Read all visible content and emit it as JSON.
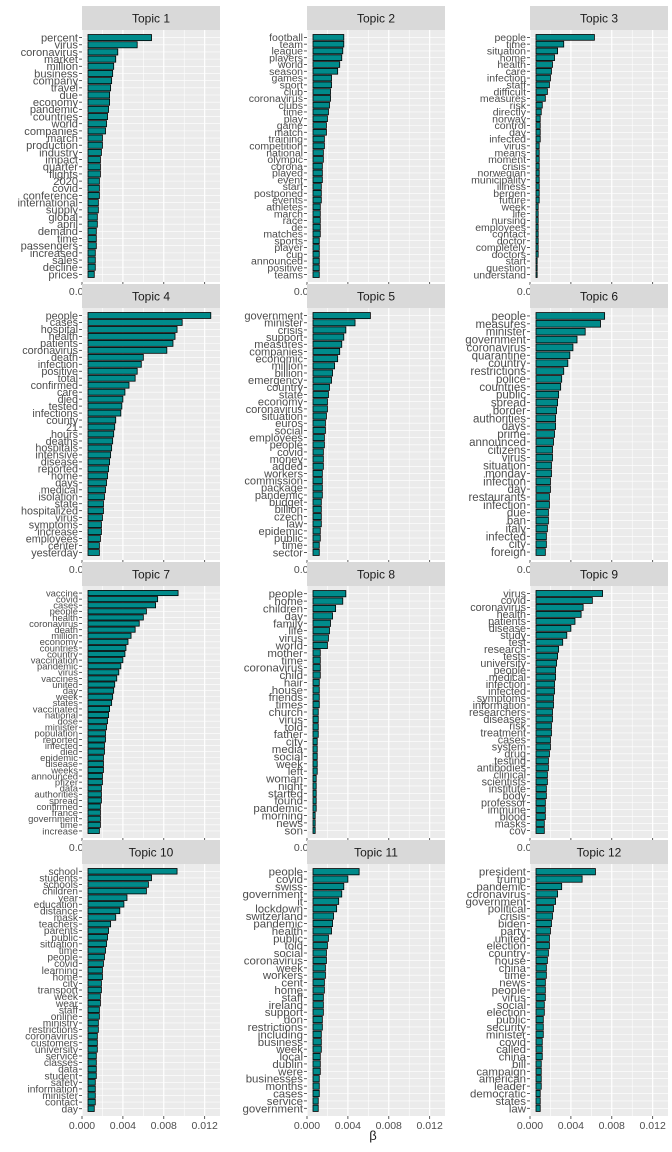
{
  "chart_data": {
    "type": "bar",
    "orientation": "horizontal",
    "xlabel": "β",
    "ylabel": "",
    "xlim": [
      0,
      0.0135
    ],
    "x_ticks": [
      0.0,
      0.004,
      0.008,
      0.012
    ],
    "x_tick_labels": [
      "0.000",
      "0.004",
      "0.008",
      "0.012"
    ],
    "bar_color": "#008B8B",
    "bar_outline": "#000000",
    "panel_background": "#EBEBEB",
    "strip_background": "#D9D9D9",
    "grid": true,
    "legend": "none",
    "panels": [
      {
        "title": "Topic 1",
        "terms": [
          "percent",
          "virus",
          "coronavirus",
          "market",
          "million",
          "business",
          "company",
          "travel",
          "due",
          "economy",
          "pandemic",
          "countries",
          "world",
          "companies",
          "march",
          "production",
          "industry",
          "impact",
          "quarter",
          "flights",
          "2020",
          "covid",
          "conference",
          "international",
          "supply",
          "global",
          "april",
          "demand",
          "time",
          "passengers",
          "increased",
          "sales",
          "decline",
          "prices"
        ],
        "values": [
          0.0068,
          0.0054,
          0.0035,
          0.0033,
          0.0031,
          0.003,
          0.0029,
          0.0028,
          0.0027,
          0.0027,
          0.0026,
          0.0025,
          0.0024,
          0.0023,
          0.002,
          0.002,
          0.0019,
          0.0018,
          0.0018,
          0.0018,
          0.0017,
          0.0017,
          0.0017,
          0.0016,
          0.0016,
          0.0015,
          0.0015,
          0.0014,
          0.0014,
          0.0014,
          0.0013,
          0.0013,
          0.0013,
          0.0012
        ]
      },
      {
        "title": "Topic 2",
        "terms": [
          "football",
          "team",
          "league",
          "players",
          "world",
          "season",
          "games",
          "sport",
          "club",
          "coronavirus",
          "clubs",
          "time",
          "play",
          "game",
          "match",
          "training",
          "competition",
          "national",
          "olympic",
          "corona",
          "played",
          "event",
          "start",
          "postponed",
          "events",
          "athletes",
          "march",
          "race",
          "de",
          "matches",
          "sports",
          "player",
          "cup",
          "announced",
          "positive",
          "teams"
        ],
        "values": [
          0.0036,
          0.0036,
          0.0035,
          0.0034,
          0.0032,
          0.003,
          0.0024,
          0.0024,
          0.0023,
          0.0023,
          0.0022,
          0.0021,
          0.002,
          0.0019,
          0.0019,
          0.0017,
          0.0017,
          0.0016,
          0.0016,
          0.0015,
          0.0015,
          0.0015,
          0.0014,
          0.0014,
          0.0014,
          0.0013,
          0.0013,
          0.0013,
          0.0013,
          0.0013,
          0.0012,
          0.0012,
          0.0012,
          0.0012,
          0.0012,
          0.0012
        ]
      },
      {
        "title": "Topic 3",
        "terms": [
          "people",
          "time",
          "situation",
          "home",
          "health",
          "care",
          "infection",
          "staff",
          "difficult",
          "measures",
          "risk",
          "directly",
          "norway",
          "control",
          "day",
          "infected",
          "virus",
          "means",
          "moment",
          "crisis",
          "norwegian",
          "municipality",
          "illness",
          "bergen",
          "future",
          "week",
          "life",
          "nursing",
          "employees",
          "contact",
          "doctor",
          "completely",
          "doctors",
          "start",
          "question",
          "understand"
        ],
        "values": [
          0.0063,
          0.0033,
          0.0027,
          0.0024,
          0.0022,
          0.0021,
          0.002,
          0.0019,
          0.0017,
          0.0015,
          0.0012,
          0.0011,
          0.001,
          0.001,
          0.001,
          0.001,
          0.0009,
          0.0009,
          0.0009,
          0.0009,
          0.0009,
          0.0009,
          0.0009,
          0.0009,
          0.0009,
          0.0008,
          0.0008,
          0.0008,
          0.0008,
          0.0008,
          0.0008,
          0.0008,
          0.0008,
          0.0007,
          0.0007,
          0.0007
        ]
      },
      {
        "title": "Topic 4",
        "terms": [
          "people",
          "cases",
          "hospital",
          "health",
          "patients",
          "coronavirus",
          "death",
          "infection",
          "positive",
          "total",
          "confirmed",
          "care",
          "died",
          "tested",
          "infections",
          "county",
          "21",
          "hours",
          "deaths",
          "hospitals",
          "intensive",
          "disease",
          "reported",
          "home",
          "days",
          "medical",
          "isolation",
          "state",
          "hospitalized",
          "virus",
          "symptoms",
          "increase",
          "employees",
          "center",
          "yesterday"
        ],
        "values": [
          0.0126,
          0.0098,
          0.0093,
          0.0091,
          0.0089,
          0.0083,
          0.006,
          0.0058,
          0.0054,
          0.0052,
          0.0046,
          0.0042,
          0.004,
          0.0039,
          0.0038,
          0.0033,
          0.0032,
          0.0031,
          0.003,
          0.0029,
          0.0028,
          0.0027,
          0.0026,
          0.0025,
          0.0024,
          0.0023,
          0.0022,
          0.0021,
          0.0021,
          0.002,
          0.0019,
          0.0019,
          0.0018,
          0.0017,
          0.0017
        ]
      },
      {
        "title": "Topic 5",
        "terms": [
          "government",
          "minister",
          "crisis",
          "support",
          "measures",
          "companies",
          "economic",
          "million",
          "billion",
          "emergency",
          "country",
          "state",
          "economy",
          "coronavirus",
          "situation",
          "euros",
          "social",
          "employees",
          "people",
          "covid",
          "money",
          "added",
          "workers",
          "commission",
          "package",
          "pandemic",
          "budget",
          "billion",
          "czech",
          "law",
          "epidemic",
          "public",
          "time",
          "sector"
        ],
        "values": [
          0.0062,
          0.0047,
          0.0038,
          0.0036,
          0.0034,
          0.0032,
          0.003,
          0.0027,
          0.0025,
          0.0024,
          0.0022,
          0.0021,
          0.002,
          0.002,
          0.0019,
          0.0018,
          0.0018,
          0.0017,
          0.0017,
          0.0016,
          0.0016,
          0.0016,
          0.0015,
          0.0015,
          0.0015,
          0.0015,
          0.0014,
          0.0014,
          0.0014,
          0.0014,
          0.0013,
          0.0013,
          0.0012,
          0.0012
        ]
      },
      {
        "title": "Topic 6",
        "terms": [
          "people",
          "measures",
          "minister",
          "government",
          "coronavirus",
          "quarantine",
          "country",
          "restrictions",
          "police",
          "countries",
          "public",
          "spread",
          "border",
          "authorities",
          "days",
          "prime",
          "announced",
          "citizens",
          "virus",
          "situation",
          "monday",
          "infection",
          "day",
          "restaurants",
          "infection",
          "due",
          "ban",
          "italy",
          "infected",
          "city",
          "foreign"
        ],
        "values": [
          0.0073,
          0.0069,
          0.0054,
          0.0046,
          0.0042,
          0.0039,
          0.0037,
          0.0033,
          0.0031,
          0.003,
          0.0028,
          0.0027,
          0.0026,
          0.0025,
          0.0025,
          0.0024,
          0.0023,
          0.0022,
          0.0022,
          0.0021,
          0.0021,
          0.002,
          0.002,
          0.0019,
          0.0019,
          0.0018,
          0.0018,
          0.0017,
          0.0016,
          0.0016,
          0.0015
        ]
      },
      {
        "title": "Topic 7",
        "terms": [
          "vaccine",
          "covid",
          "cases",
          "people",
          "health",
          "coronavirus",
          "death",
          "million",
          "economy",
          "countries",
          "country",
          "vaccination",
          "pandemic",
          "virus",
          "vaccines",
          "united",
          "day",
          "week",
          "states",
          "vaccinated",
          "national",
          "dose",
          "minister",
          "population",
          "reported",
          "infected",
          "died",
          "epidemic",
          "disease",
          "weeks",
          "announced",
          "pfizer",
          "data",
          "authorities",
          "spread",
          "confirmed",
          "france",
          "government",
          "time",
          "increase"
        ],
        "values": [
          0.0094,
          0.0074,
          0.0072,
          0.0063,
          0.006,
          0.0056,
          0.0052,
          0.0048,
          0.0045,
          0.0043,
          0.0042,
          0.004,
          0.0038,
          0.0036,
          0.0034,
          0.0032,
          0.0031,
          0.003,
          0.0029,
          0.0027,
          0.0026,
          0.0025,
          0.0024,
          0.0023,
          0.0023,
          0.0022,
          0.0022,
          0.0021,
          0.0021,
          0.0021,
          0.002,
          0.002,
          0.0019,
          0.0019,
          0.0019,
          0.0018,
          0.0018,
          0.0018,
          0.0018,
          0.0017
        ]
      },
      {
        "title": "Topic 8",
        "terms": [
          "people",
          "home",
          "children",
          "day",
          "family",
          "life",
          "virus",
          "world",
          "mother",
          "time",
          "coronavirus",
          "child",
          "hair",
          "house",
          "friends",
          "times",
          "church",
          "virus",
          "told",
          "father",
          "city",
          "media",
          "social",
          "week",
          "left",
          "woman",
          "night",
          "started",
          "found",
          "pandemic",
          "morning",
          "news",
          "son"
        ],
        "values": [
          0.0038,
          0.0035,
          0.0028,
          0.0025,
          0.0023,
          0.0022,
          0.0021,
          0.002,
          0.0013,
          0.0013,
          0.0013,
          0.0013,
          0.0012,
          0.0012,
          0.0012,
          0.0012,
          0.0011,
          0.0011,
          0.0011,
          0.0011,
          0.001,
          0.001,
          0.001,
          0.001,
          0.001,
          0.0009,
          0.0009,
          0.0009,
          0.0009,
          0.0009,
          0.0008,
          0.0008,
          0.0008
        ]
      },
      {
        "title": "Topic 9",
        "terms": [
          "virus",
          "covid",
          "coronavirus",
          "health",
          "patients",
          "disease",
          "study",
          "test",
          "research",
          "tests",
          "university",
          "people",
          "medical",
          "infection",
          "infected",
          "symptoms",
          "information",
          "researchers",
          "diseases",
          "risk",
          "treatment",
          "cases",
          "system",
          "drug",
          "testing",
          "antibodies",
          "clinical",
          "scientists",
          "institute",
          "body",
          "professor",
          "immune",
          "blood",
          "masks",
          "cov"
        ],
        "values": [
          0.0071,
          0.0061,
          0.0052,
          0.005,
          0.0044,
          0.004,
          0.0036,
          0.0032,
          0.0028,
          0.0027,
          0.0026,
          0.0025,
          0.0025,
          0.0024,
          0.0024,
          0.0023,
          0.0023,
          0.0022,
          0.0022,
          0.0021,
          0.0021,
          0.002,
          0.002,
          0.0019,
          0.0018,
          0.0018,
          0.0017,
          0.0017,
          0.0016,
          0.0016,
          0.0015,
          0.0015,
          0.0015,
          0.0014,
          0.0014
        ]
      },
      {
        "title": "Topic 10",
        "terms": [
          "school",
          "students",
          "schools",
          "children",
          "year",
          "education",
          "distance",
          "mask",
          "teachers",
          "parents",
          "public",
          "situation",
          "time",
          "people",
          "covid",
          "learning",
          "home",
          "city",
          "transport",
          "week",
          "wear",
          "staff",
          "online",
          "ministry",
          "restrictions",
          "coronavirus",
          "customers",
          "university",
          "service",
          "classes",
          "data",
          "student",
          "safety",
          "information",
          "minister",
          "contact",
          "day"
        ],
        "values": [
          0.0093,
          0.0068,
          0.0065,
          0.0063,
          0.0044,
          0.0041,
          0.0037,
          0.0033,
          0.0028,
          0.0026,
          0.0025,
          0.0024,
          0.0023,
          0.0022,
          0.0021,
          0.002,
          0.002,
          0.0019,
          0.0019,
          0.0018,
          0.0018,
          0.0017,
          0.0017,
          0.0016,
          0.0016,
          0.0015,
          0.0015,
          0.0015,
          0.0014,
          0.0014,
          0.0014,
          0.0014,
          0.0013,
          0.0013,
          0.0013,
          0.0013,
          0.0012
        ]
      },
      {
        "title": "Topic 11",
        "terms": [
          "people",
          "covid",
          "swiss",
          "government",
          "it",
          "lockdown",
          "switzerland",
          "pandemic",
          "health",
          "public",
          "told",
          "social",
          "coronavirus",
          "week",
          "workers",
          "cent",
          "home",
          "staff",
          "ireland",
          "support",
          "don",
          "restrictions",
          "including",
          "business",
          "week",
          "local",
          "dublin",
          "were",
          "businesses",
          "months",
          "cases",
          "service",
          "government"
        ],
        "values": [
          0.0051,
          0.004,
          0.0036,
          0.0034,
          0.0031,
          0.0029,
          0.0026,
          0.0025,
          0.0024,
          0.0021,
          0.002,
          0.0019,
          0.0019,
          0.0018,
          0.0018,
          0.0017,
          0.0017,
          0.0016,
          0.0016,
          0.0016,
          0.0015,
          0.0015,
          0.0014,
          0.0014,
          0.0014,
          0.0013,
          0.0013,
          0.0013,
          0.0012,
          0.0012,
          0.0012,
          0.0011,
          0.0011
        ]
      },
      {
        "title": "Topic 12",
        "terms": [
          "president",
          "trump",
          "pandemic",
          "coronavirus",
          "government",
          "political",
          "crisis",
          "biden",
          "party",
          "united",
          "election",
          "country",
          "house",
          "china",
          "time",
          "news",
          "people",
          "virus",
          "social",
          "election",
          "public",
          "security",
          "minister",
          "covid",
          "called",
          "china",
          "bill",
          "campaign",
          "american",
          "leader",
          "democratic",
          "states",
          "law"
        ],
        "values": [
          0.0064,
          0.0051,
          0.0031,
          0.0027,
          0.0025,
          0.0023,
          0.0022,
          0.0021,
          0.002,
          0.0019,
          0.0019,
          0.0018,
          0.0017,
          0.0016,
          0.0016,
          0.0015,
          0.0015,
          0.0015,
          0.0014,
          0.0014,
          0.0013,
          0.0013,
          0.0013,
          0.0012,
          0.0012,
          0.0012,
          0.0011,
          0.0011,
          0.0011,
          0.0011,
          0.001,
          0.001,
          0.001
        ]
      }
    ]
  }
}
